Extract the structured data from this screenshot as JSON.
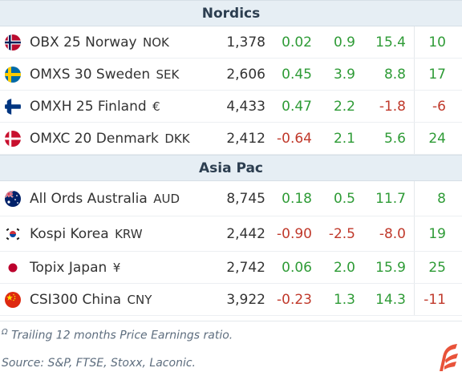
{
  "sections": [
    {
      "title": "Nordics",
      "rows": [
        {
          "flag": "norway-flag",
          "name": "OBX 25 Norway",
          "currency": "NOK",
          "price": "1,378",
          "c1": "0.02",
          "c2": "0.9",
          "c3": "15.4",
          "c4": "10"
        },
        {
          "flag": "sweden-flag",
          "name": "OMXS 30 Sweden",
          "currency": "SEK",
          "price": "2,606",
          "c1": "0.45",
          "c2": "3.9",
          "c3": "8.8",
          "c4": "17"
        },
        {
          "flag": "finland-flag",
          "name": "OMXH 25 Finland",
          "currency": " €",
          "price": "4,433",
          "c1": "0.47",
          "c2": "2.2",
          "c3": "-1.8",
          "c4": "-6"
        },
        {
          "flag": "denmark-flag",
          "name": "OMXC 20 Denmark",
          "currency": "DKK",
          "price": "2,412",
          "c1": "-0.64",
          "c2": "2.1",
          "c3": "5.6",
          "c4": "24"
        }
      ]
    },
    {
      "title": "Asia Pac",
      "rows": [
        {
          "flag": "australia-flag",
          "name": "All Ords Australia",
          "currency": "AUD",
          "price": "8,745",
          "c1": "0.18",
          "c2": "0.5",
          "c3": "11.7",
          "c4": "8"
        },
        {
          "flag": "south-korea-flag",
          "name": "Kospi Korea",
          "currency": "KRW",
          "price": "2,442",
          "c1": "-0.90",
          "c2": "-2.5",
          "c3": "-8.0",
          "c4": "19"
        },
        {
          "flag": "japan-flag",
          "name": "Topix Japan",
          "currency": " ¥",
          "price": "2,742",
          "c1": "0.06",
          "c2": "2.0",
          "c3": "15.9",
          "c4": "25"
        },
        {
          "flag": "china-flag",
          "name": "CSI300 China",
          "currency": "CNY",
          "price": "3,922",
          "c1": "-0.23",
          "c2": "1.3",
          "c3": "14.3",
          "c4": "-11"
        }
      ]
    }
  ],
  "footnote": {
    "marker": "Ω",
    "text": " Trailing 12 months Price Earnings ratio."
  },
  "source": "Source: S&P, FTSE, Stoxx, Laconic.",
  "logo_icon": "brand-logo-icon",
  "colors": {
    "positive": "#2e9b36",
    "negative": "#c0392b",
    "header_bg": "#e6eef4",
    "logo": "#e8533a"
  }
}
